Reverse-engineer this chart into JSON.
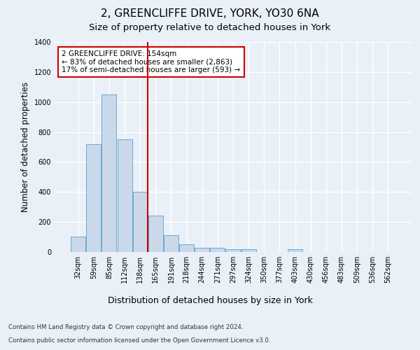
{
  "title_line1": "2, GREENCLIFFE DRIVE, YORK, YO30 6NA",
  "title_line2": "Size of property relative to detached houses in York",
  "xlabel": "Distribution of detached houses by size in York",
  "ylabel": "Number of detached properties",
  "categories": [
    "32sqm",
    "59sqm",
    "85sqm",
    "112sqm",
    "138sqm",
    "165sqm",
    "191sqm",
    "218sqm",
    "244sqm",
    "271sqm",
    "297sqm",
    "324sqm",
    "350sqm",
    "377sqm",
    "403sqm",
    "430sqm",
    "456sqm",
    "483sqm",
    "509sqm",
    "536sqm",
    "562sqm"
  ],
  "values": [
    105,
    720,
    1050,
    750,
    400,
    245,
    110,
    50,
    30,
    30,
    20,
    20,
    0,
    0,
    20,
    0,
    0,
    0,
    0,
    0,
    0
  ],
  "bar_color": "#c9d9ea",
  "bar_edge_color": "#6aaad4",
  "vline_index": 4,
  "vline_color": "#cc0000",
  "annotation_text": "2 GREENCLIFFE DRIVE: 154sqm\n← 83% of detached houses are smaller (2,863)\n17% of semi-detached houses are larger (593) →",
  "annotation_box_facecolor": "#ffffff",
  "annotation_box_edgecolor": "#cc0000",
  "ylim": [
    0,
    1400
  ],
  "yticks": [
    0,
    200,
    400,
    600,
    800,
    1000,
    1200,
    1400
  ],
  "footer_line1": "Contains HM Land Registry data © Crown copyright and database right 2024.",
  "footer_line2": "Contains public sector information licensed under the Open Government Licence v3.0.",
  "bg_color": "#eaf0f8",
  "plot_bg_color": "#eaf0f8",
  "grid_color": "#ffffff",
  "title1_fontsize": 11,
  "title2_fontsize": 9.5,
  "tick_fontsize": 7,
  "ylabel_fontsize": 8.5,
  "xlabel_fontsize": 9,
  "annot_fontsize": 7.5,
  "footer_fontsize": 6.2
}
